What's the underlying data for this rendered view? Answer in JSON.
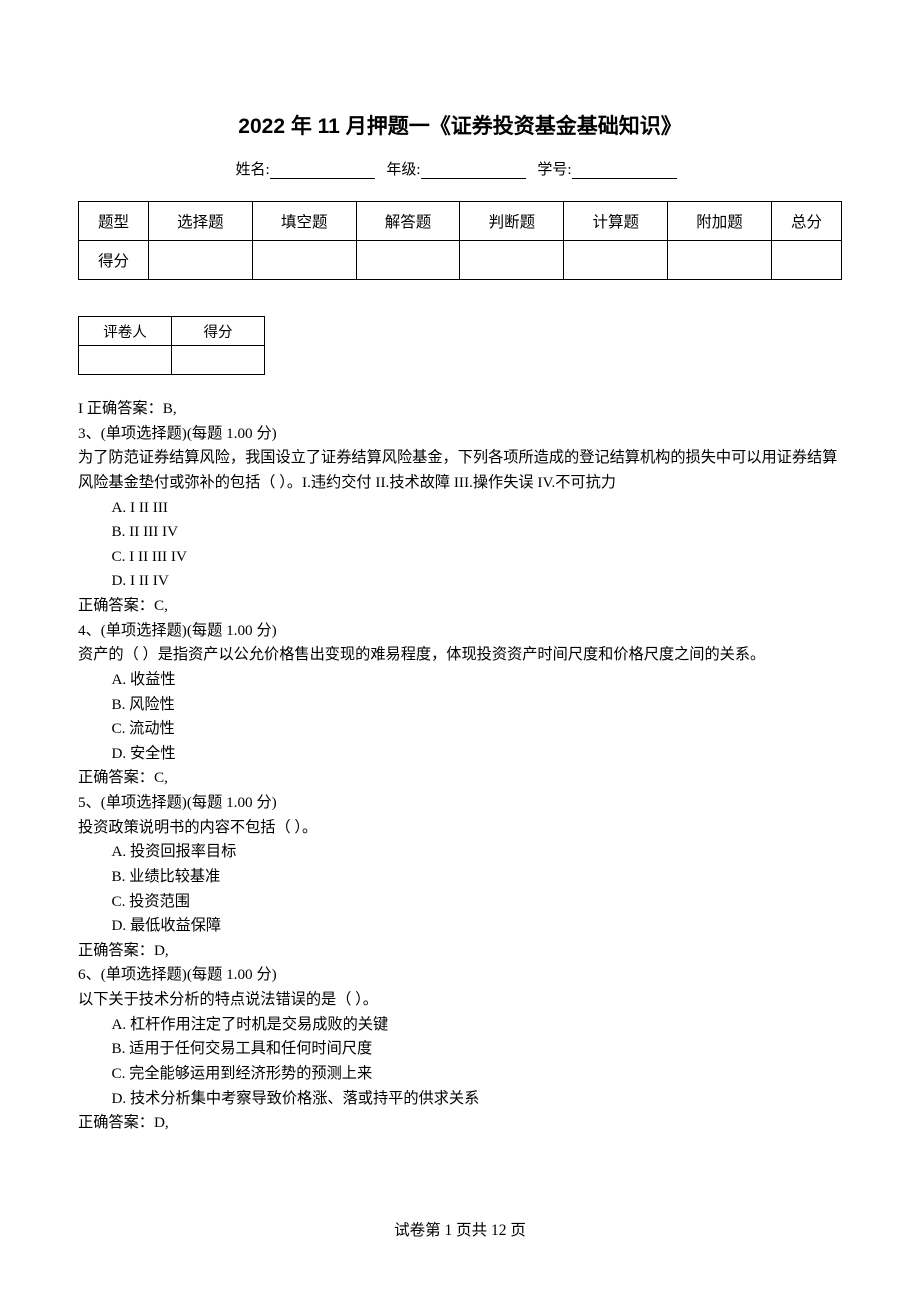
{
  "title": "2022 年 11 月押题一《证券投资基金基础知识》",
  "info": {
    "name_label": "姓名:",
    "grade_label": "年级:",
    "id_label": "学号:"
  },
  "score_table": {
    "headers": [
      "题型",
      "选择题",
      "填空题",
      "解答题",
      "判断题",
      "计算题",
      "附加题",
      "总分"
    ],
    "row_label": "得分"
  },
  "grader_table": {
    "col1": "评卷人",
    "col2": "得分"
  },
  "body": {
    "l1": "I 正确答案：B,",
    "q3_head": "3、(单项选择题)(每题 1.00 分)",
    "q3_text": "为了防范证券结算风险，我国设立了证券结算风险基金，下列各项所造成的登记结算机构的损失中可以用证券结算风险基金垫付或弥补的包括（   ）。I.违约交付 II.技术故障 III.操作失误 IV.不可抗力",
    "q3_a": "A.  I II III",
    "q3_b": "B.  II III IV",
    "q3_c": "C.  I II III IV",
    "q3_d": "D.  I II IV",
    "q3_ans": "正确答案：C,",
    "q4_head": "4、(单项选择题)(每题 1.00 分)",
    "q4_text": "资产的（   ）是指资产以公允价格售出变现的难易程度，体现投资资产时间尺度和价格尺度之间的关系。",
    "q4_a": "A. 收益性",
    "q4_b": "B. 风险性",
    "q4_c": "C. 流动性",
    "q4_d": "D. 安全性",
    "q4_ans": "正确答案：C,",
    "q5_head": "5、(单项选择题)(每题 1.00 分)",
    "q5_text": "投资政策说明书的内容不包括（   ）。",
    "q5_a": "A. 投资回报率目标",
    "q5_b": "B. 业绩比较基准",
    "q5_c": "C. 投资范围",
    "q5_d": "D. 最低收益保障",
    "q5_ans": "正确答案：D,",
    "q6_head": "6、(单项选择题)(每题 1.00 分)",
    "q6_text": "以下关于技术分析的特点说法错误的是（   ）。",
    "q6_a": "A. 杠杆作用注定了时机是交易成败的关键",
    "q6_b": "B. 适用于任何交易工具和任何时间尺度",
    "q6_c": "C. 完全能够运用到经济形势的预测上来",
    "q6_d": "D. 技术分析集中考察导致价格涨、落或持平的供求关系",
    "q6_ans": "正确答案：D,"
  },
  "footer": "试卷第 1 页共 12 页"
}
